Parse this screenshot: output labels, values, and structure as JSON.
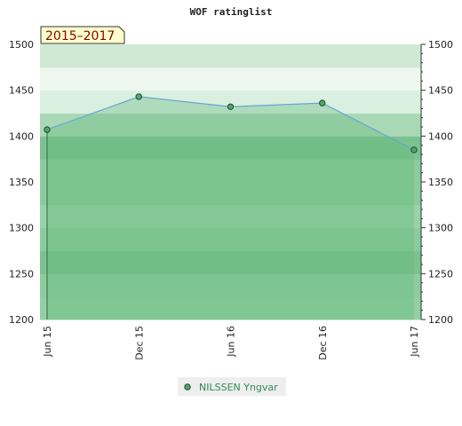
{
  "chart_data": {
    "type": "area",
    "title": "WOF ratinglist",
    "period_label": "2015–2017",
    "x": [
      "Jun 15",
      "Dec 15",
      "Jun 16",
      "Dec 16",
      "Jun 17"
    ],
    "series": [
      {
        "name": "NILSSEN Yngvar",
        "values": [
          1407,
          1443,
          1432,
          1436,
          1385
        ]
      }
    ],
    "yticks": [
      1200,
      1250,
      1300,
      1350,
      1400,
      1450,
      1500
    ],
    "ylim": [
      1200,
      1500
    ],
    "axis_side": "both",
    "legend_position": "bottom-center",
    "colors": {
      "band_colors": [
        "#94cfa4",
        "#8ecca0",
        "#7bc290",
        "#8bcb9d",
        "#99d1a8",
        "#8bcb9d",
        "#8bcb9d",
        "#7bc290",
        "#a9d8b5",
        "#d9efdf",
        "#eef7f0",
        "#cfe9d5",
        "#e0f1e4",
        "#b4ddbf",
        "#ffffff"
      ],
      "area_fill": "#5fb878",
      "line": "#6aa6d4",
      "marker_fill": "#4fa86a",
      "marker_stroke": "#1f4d2e",
      "period_bg": "#ffffcc",
      "period_text": "#8b0000",
      "legend_text": "#2e8b57",
      "legend_bg": "#eeeeee"
    }
  }
}
